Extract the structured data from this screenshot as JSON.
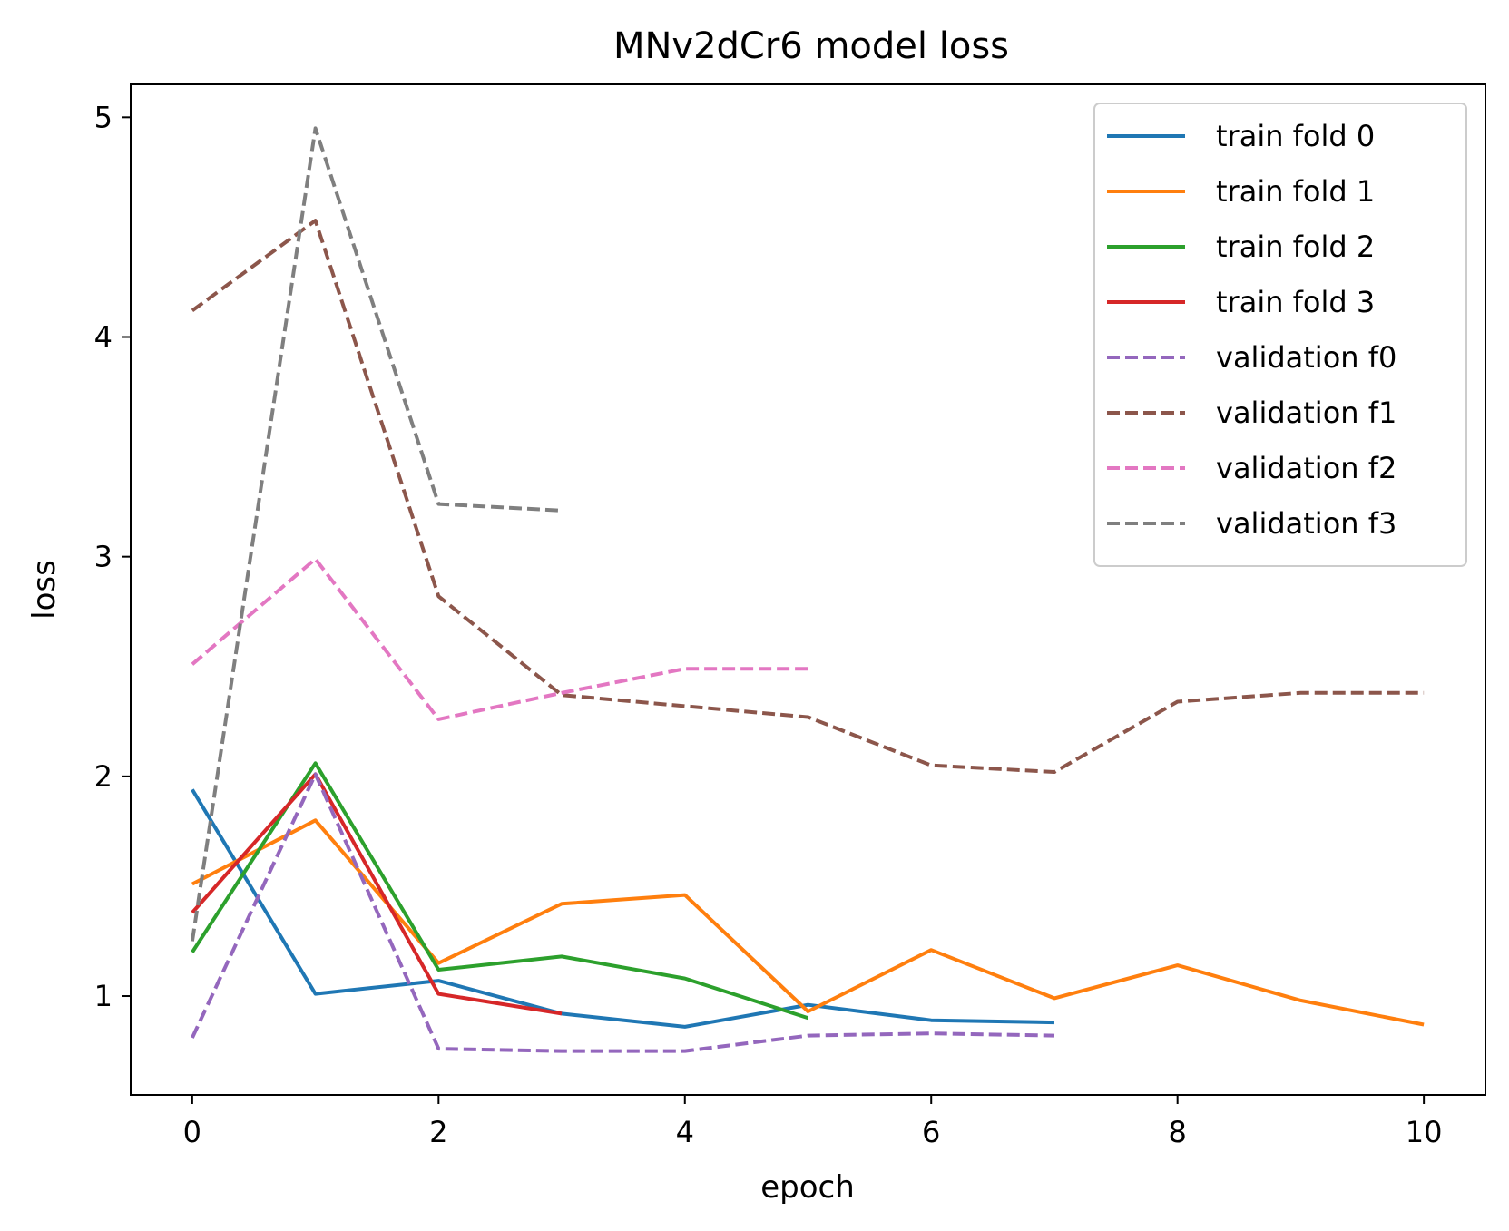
{
  "chart_data": {
    "type": "line",
    "title": "MNv2dCr6 model loss",
    "xlabel": "epoch",
    "ylabel": "loss",
    "xlim": [
      -0.5,
      10.5
    ],
    "ylim": [
      0.55,
      5.15
    ],
    "xticks": [
      0,
      2,
      4,
      6,
      8,
      10
    ],
    "yticks": [
      1,
      2,
      3,
      4,
      5
    ],
    "grid": false,
    "legend_position": "top-right",
    "series": [
      {
        "name": "train fold 0",
        "style": "solid",
        "color": "#1f77b4",
        "x": [
          0,
          1,
          2,
          3,
          4,
          5,
          6,
          7
        ],
        "y": [
          1.94,
          1.01,
          1.07,
          0.92,
          0.86,
          0.96,
          0.89,
          0.88
        ]
      },
      {
        "name": "train fold 1",
        "style": "solid",
        "color": "#ff7f0e",
        "x": [
          0,
          1,
          2,
          3,
          4,
          5,
          6,
          7,
          8,
          9,
          10
        ],
        "y": [
          1.51,
          1.8,
          1.15,
          1.42,
          1.46,
          0.93,
          1.21,
          0.99,
          1.14,
          0.98,
          0.87
        ]
      },
      {
        "name": "train fold 2",
        "style": "solid",
        "color": "#2ca02c",
        "x": [
          0,
          1,
          2,
          3,
          4,
          5
        ],
        "y": [
          1.2,
          2.06,
          1.12,
          1.18,
          1.08,
          0.9
        ]
      },
      {
        "name": "train fold 3",
        "style": "solid",
        "color": "#d62728",
        "x": [
          0,
          1,
          2,
          3
        ],
        "y": [
          1.38,
          2.01,
          1.01,
          0.92
        ]
      },
      {
        "name": "validation f0",
        "style": "dashed",
        "color": "#9467bd",
        "x": [
          0,
          1,
          2,
          3,
          4,
          5,
          6,
          7
        ],
        "y": [
          0.81,
          2.01,
          0.76,
          0.75,
          0.75,
          0.82,
          0.83,
          0.82
        ]
      },
      {
        "name": "validation f1",
        "style": "dashed",
        "color": "#8c564b",
        "x": [
          0,
          1,
          2,
          3,
          4,
          5,
          6,
          7,
          8,
          9,
          10
        ],
        "y": [
          4.12,
          4.53,
          2.82,
          2.37,
          2.32,
          2.27,
          2.05,
          2.02,
          2.34,
          2.38,
          2.38
        ]
      },
      {
        "name": "validation f2",
        "style": "dashed",
        "color": "#e377c2",
        "x": [
          0,
          1,
          2,
          3,
          4,
          5
        ],
        "y": [
          2.51,
          2.99,
          2.26,
          2.38,
          2.49,
          2.49
        ]
      },
      {
        "name": "validation f3",
        "style": "dashed",
        "color": "#7f7f7f",
        "x": [
          0,
          1,
          2,
          3
        ],
        "y": [
          1.25,
          4.95,
          3.24,
          3.21
        ]
      }
    ]
  }
}
